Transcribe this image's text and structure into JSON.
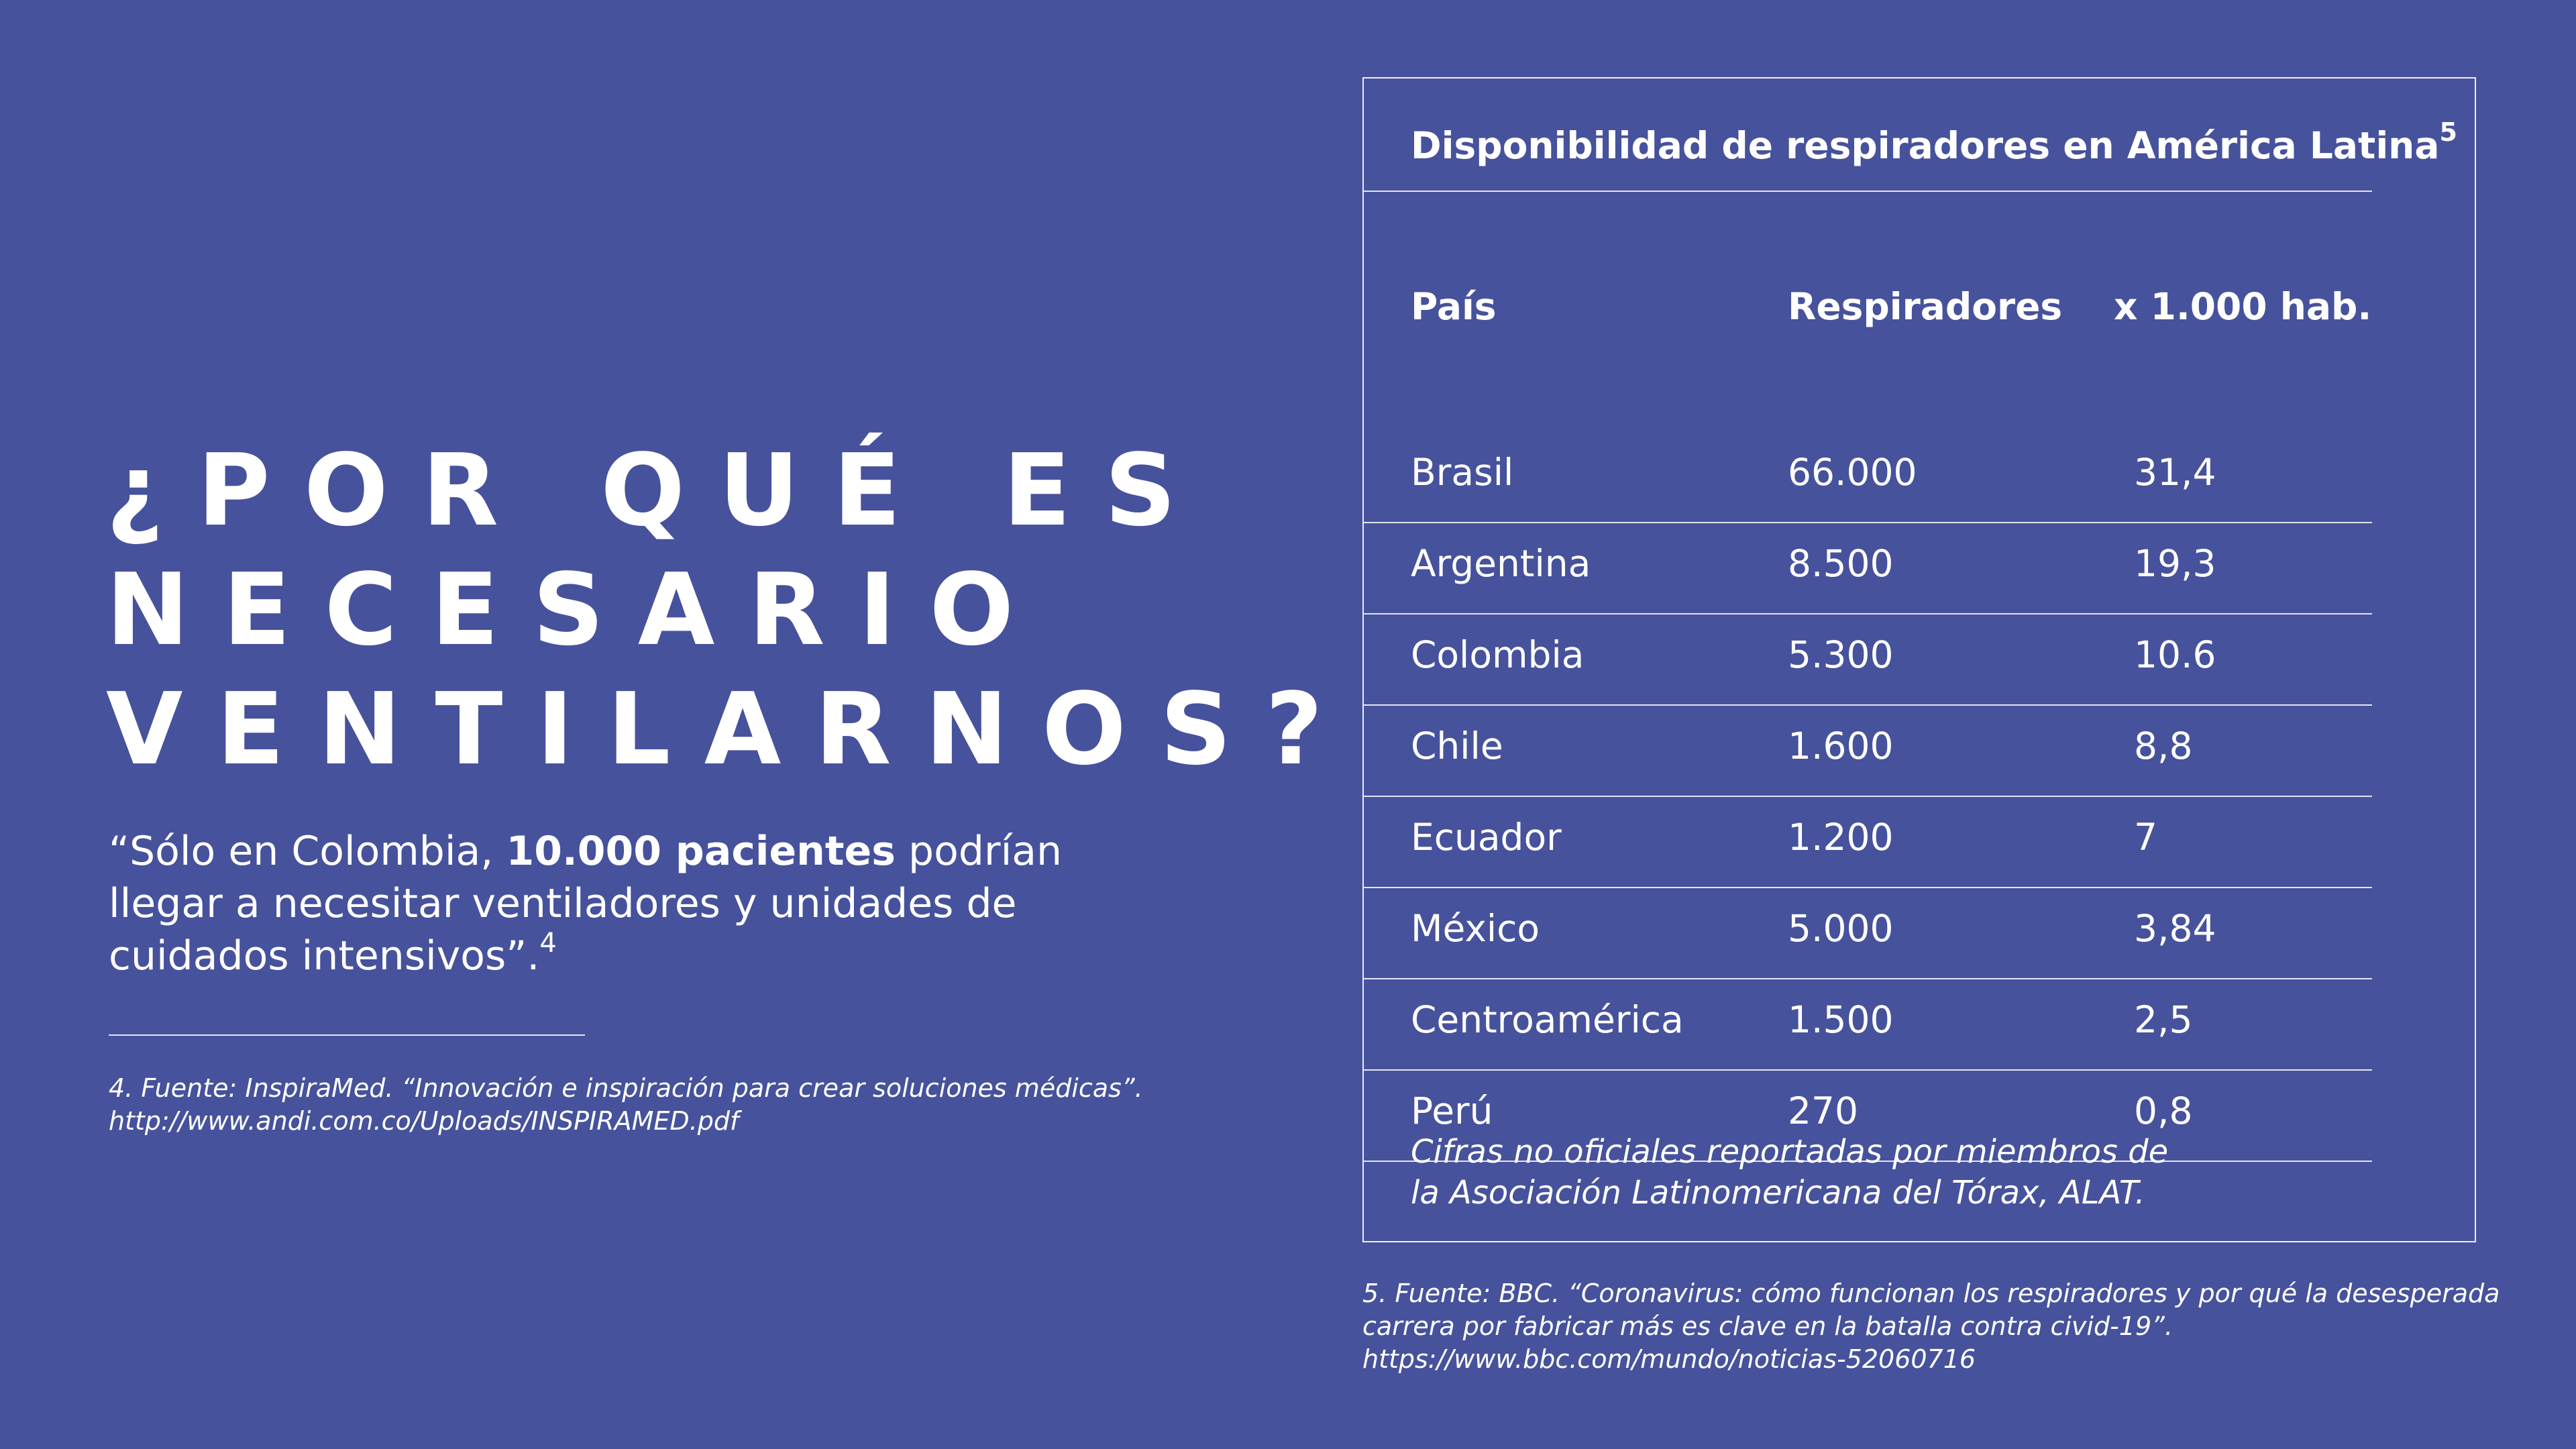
{
  "headline": {
    "line1": "¿POR QUÉ ES",
    "line2": "NECESARIO",
    "line3": "VENTILARNOS?"
  },
  "quote": {
    "before": "“Sólo en Colombia, ",
    "bold": "10.000 pacientes",
    "after": " podrían llegar a necesitar ventiladores y unidades de cuidados intensivos”.",
    "ref": "4"
  },
  "footnote_left": "4. Fuente: InspiraMed. “Innovación e inspiración para crear soluciones médicas”.\nhttp://www.andi.com.co/Uploads/INSPIRAMED.pdf",
  "table": {
    "title": "Disponibilidad de respiradores en América Latina",
    "title_ref": "5",
    "headers": [
      "País",
      "Respiradores",
      "x 1.000 hab."
    ],
    "rows": [
      [
        "Brasil",
        "66.000",
        "31,4"
      ],
      [
        "Argentina",
        "8.500",
        "19,3"
      ],
      [
        "Colombia",
        "5.300",
        "10.6"
      ],
      [
        "Chile",
        "1.600",
        "8,8"
      ],
      [
        "Ecuador",
        "1.200",
        "7"
      ],
      [
        "México",
        "5.000",
        "3,84"
      ],
      [
        "Centroamérica",
        "1.500",
        "2,5"
      ],
      [
        "Perú",
        "270",
        "0,8"
      ]
    ],
    "note": "Cifras no oficiales reportadas por miembros de\nla Asociación Latinomericana del Tórax, ALAT."
  },
  "footnote_right": "5. Fuente: BBC. “Coronavirus: cómo funcionan los respiradores y por qué la desesperada\ncarrera por fabricar más es clave en la batalla contra civid-19”.\nhttps://www.bbc.com/mundo/noticias-52060716",
  "colors": {
    "background": "#47529c",
    "text": "#ffffff"
  }
}
